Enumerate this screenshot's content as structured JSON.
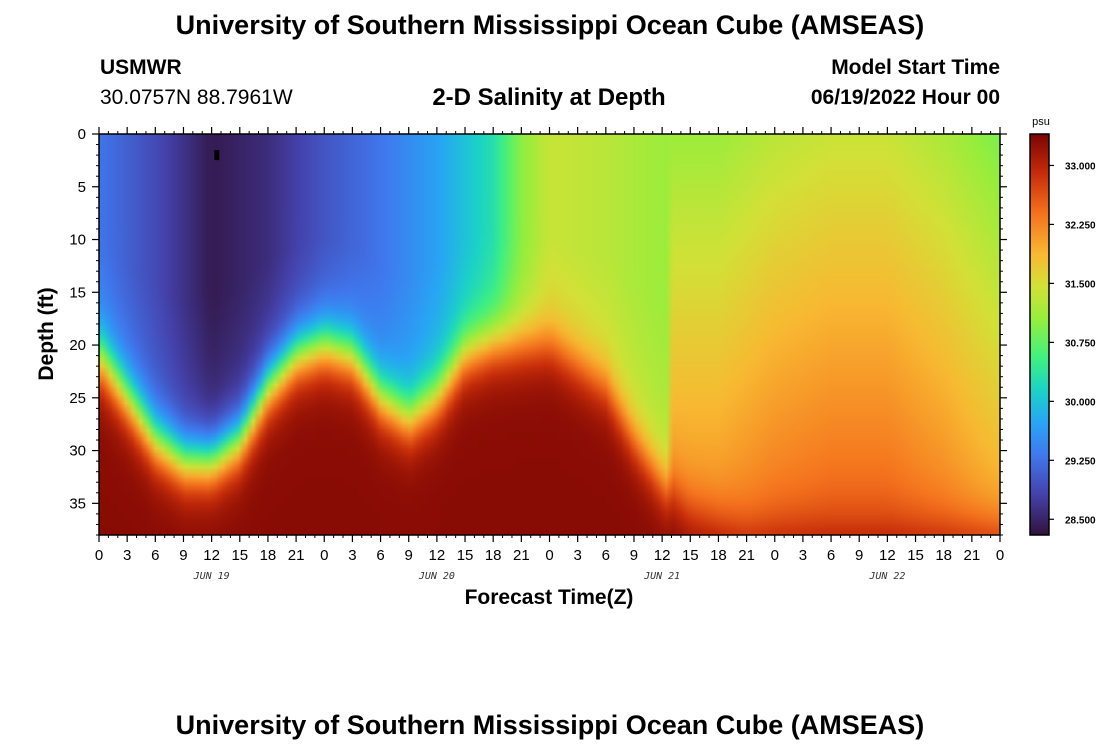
{
  "page": {
    "title": "University of Southern Mississippi Ocean Cube (AMSEAS)",
    "footer_title": "University of Southern Mississippi Ocean Cube (AMSEAS)",
    "station_name": "USMWR",
    "station_coords": "30.0757N  88.7961W",
    "plot_title": "2-D Salinity at Depth",
    "model_start_label": "Model Start Time",
    "model_start_value": "06/19/2022 Hour 00"
  },
  "chart_data": {
    "type": "heatmap",
    "title": "2-D Salinity at Depth",
    "xlabel": "Forecast Time(Z)",
    "ylabel": "Depth (ft)",
    "x_range_hours": [
      0,
      96
    ],
    "y_range_ft": [
      0,
      38
    ],
    "x_tick_labels": [
      "0",
      "3",
      "6",
      "9",
      "12",
      "15",
      "18",
      "21",
      "0",
      "3",
      "6",
      "9",
      "12",
      "15",
      "18",
      "21",
      "0",
      "3",
      "6",
      "9",
      "12",
      "15",
      "18",
      "21",
      "0",
      "3",
      "6",
      "9",
      "12",
      "15",
      "18",
      "21",
      "0"
    ],
    "y_ticks": [
      0,
      5,
      10,
      15,
      20,
      25,
      30,
      35
    ],
    "y_tick_labels": [
      "0",
      "5",
      "10",
      "15",
      "20",
      "25",
      "30",
      "35"
    ],
    "date_labels": [
      "JUN 19",
      "JUN 20",
      "JUN 21",
      "JUN 22"
    ],
    "date_label_hours": [
      12,
      36,
      60,
      84
    ],
    "colorbar": {
      "unit": "psu",
      "range": [
        28.3,
        33.4
      ],
      "ticks": [
        28.5,
        29.25,
        30.0,
        30.75,
        31.5,
        32.25,
        33.0
      ],
      "tick_labels": [
        "28.500",
        "29.250",
        "30.000",
        "30.750",
        "31.500",
        "32.250",
        "33.000"
      ]
    },
    "interface_depth_samples": {
      "hours": [
        0,
        3,
        6,
        9,
        12,
        15,
        18,
        21,
        24,
        27,
        30,
        33,
        36,
        39,
        42,
        45,
        48,
        51,
        54,
        57,
        60,
        63,
        66,
        69,
        72,
        75,
        78,
        81
      ],
      "depth_ft": [
        21,
        25,
        29,
        31,
        31,
        29,
        24,
        21,
        20,
        21,
        25,
        27,
        25,
        21,
        20,
        20,
        20,
        22,
        24,
        29,
        33,
        36,
        37,
        38,
        38,
        38,
        38,
        38
      ]
    },
    "surface_salinity_samples": {
      "hours": [
        0,
        6,
        12,
        18,
        24,
        30,
        36,
        42,
        45,
        48,
        54,
        60,
        66,
        72,
        78,
        84,
        90,
        96
      ],
      "psu": [
        29.3,
        28.9,
        28.4,
        28.6,
        29.0,
        29.3,
        29.7,
        30.3,
        31.0,
        31.4,
        31.3,
        31.1,
        31.1,
        31.3,
        31.4,
        31.4,
        31.2,
        30.9
      ]
    },
    "bottom_salinity_psu": 33.3,
    "marker": {
      "hour": 12.5,
      "depth_ft": 2
    }
  }
}
